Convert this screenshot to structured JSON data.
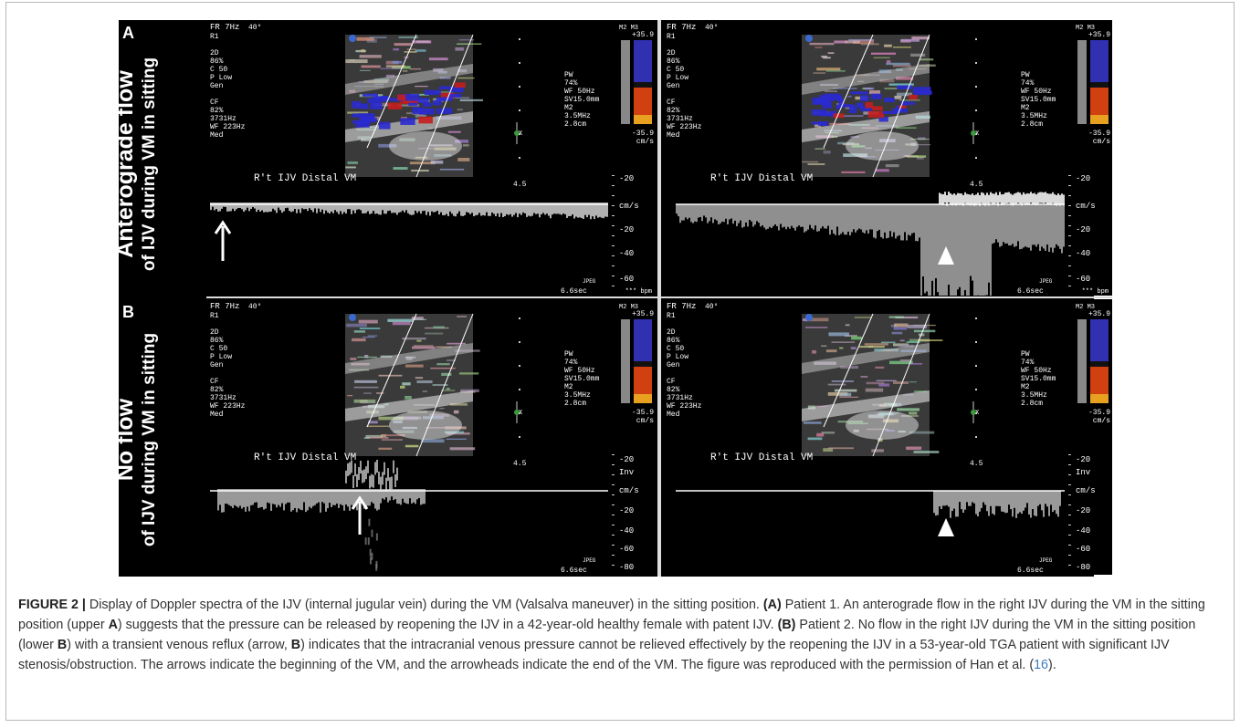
{
  "rows": [
    {
      "letter": "A",
      "line1": "Anterograde flow",
      "line2": "of IJV during VM in sitting"
    },
    {
      "letter": "B",
      "line1": "No flow",
      "line2": "of IJV during VM in sitting"
    }
  ],
  "us_text": {
    "fr": "FR 7Hz",
    "fr_angle": "40°",
    "r1": "R1",
    "left_2d": [
      "2D",
      "86%",
      "C 50",
      "P Low",
      "Gen"
    ],
    "left_cf": [
      "CF",
      "82%",
      "3731Hz",
      "WF 223Hz",
      "Med"
    ],
    "right_pw": [
      "PW",
      "74%",
      "WF  50Hz",
      "SV15.0mm",
      "M2",
      "3.5MHz",
      "2.8cm"
    ],
    "scale_top": "+35.9",
    "scale_bot": "-35.9",
    "scale_unit": "cm/s",
    "m2m3": "M2 M3",
    "location": "R't  IJV  Distal  VM",
    "depth": "4.5",
    "x_marker": "X",
    "spec_labels_a": [
      "-20",
      "cm/s",
      "-20",
      "-40",
      "-60"
    ],
    "spec_labels_b": [
      "-20",
      "Inv",
      "cm/s",
      "-20",
      "-40",
      "-60",
      "-80"
    ],
    "jpeg": "JPEG",
    "time": "6.6sec",
    "bpm": "*** bpm"
  },
  "caption": {
    "lead": "FIGURE 2 |",
    "t1": " Display of Doppler spectra of the IJV (internal jugular vein) during the VM (Valsalva maneuver) in the sitting position. ",
    "a_tag": "(A)",
    "t2": " Patient 1. An anterograde flow in the right IJV during the VM in the sitting position (upper ",
    "a_bold": "A",
    "t3": ") suggests that the pressure can be released by reopening the IJV in a 42-year-old healthy female with patent IJV. ",
    "b_tag": "(B)",
    "t4": " Patient 2. No flow in the right IJV during the VM in the sitting position (lower ",
    "b_bold1": "B",
    "t5": ") with a transient venous reflux (arrow, ",
    "b_bold2": "B",
    "t6": ") indicates that the intracranial venous pressure cannot be relieved effectively by the reopening the IJV in a 53-year-old TGA patient with significant IJV stenosis/obstruction. The arrows indicate the beginning of the VM, and the arrowheads indicate the end of the VM. The figure was reproduced with the permission of Han et al. (",
    "ref": "16",
    "t7": ")."
  }
}
